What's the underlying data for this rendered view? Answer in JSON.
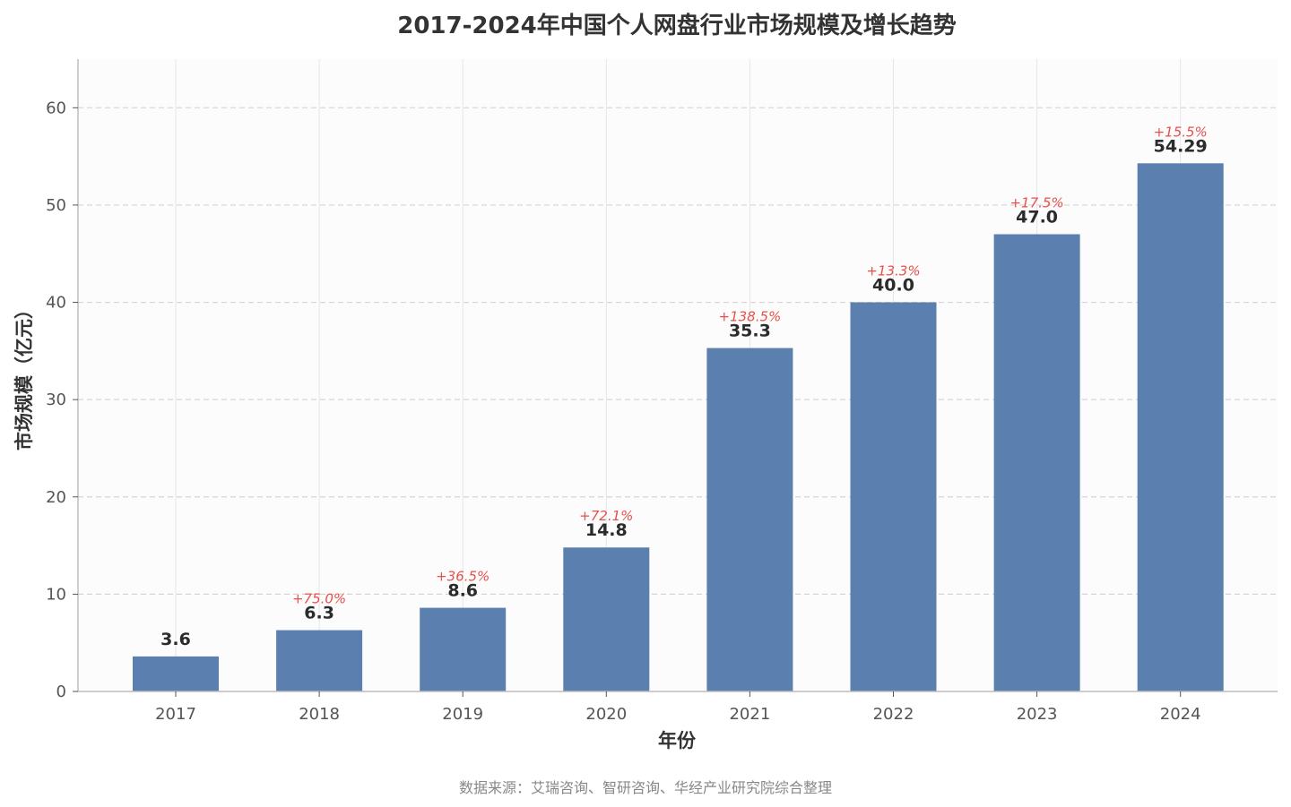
{
  "chart_data": {
    "type": "bar",
    "title": "2017-2024年中国个人网盘行业市场规模及增长趋势",
    "xlabel": "年份",
    "ylabel": "市场规模（亿元）",
    "categories": [
      "2017",
      "2018",
      "2019",
      "2020",
      "2021",
      "2022",
      "2023",
      "2024"
    ],
    "values": [
      3.6,
      6.3,
      8.6,
      14.8,
      35.3,
      40.0,
      47.0,
      54.29
    ],
    "value_labels": [
      "3.6",
      "6.3",
      "8.6",
      "14.8",
      "35.3",
      "40.0",
      "47.0",
      "54.29"
    ],
    "growth_labels": [
      "",
      "+75.0%",
      "+36.5%",
      "+72.1%",
      "+138.5%",
      "+13.3%",
      "+17.5%",
      "+15.5%"
    ],
    "ylim": [
      0,
      65
    ],
    "yticks": [
      0,
      10,
      20,
      30,
      40,
      50,
      60
    ],
    "grid": true,
    "bar_color": "#5b7fae",
    "growth_color": "#e8504a"
  },
  "source_text": "数据来源：艾瑞咨询、智研咨询、华经产业研究院综合整理"
}
